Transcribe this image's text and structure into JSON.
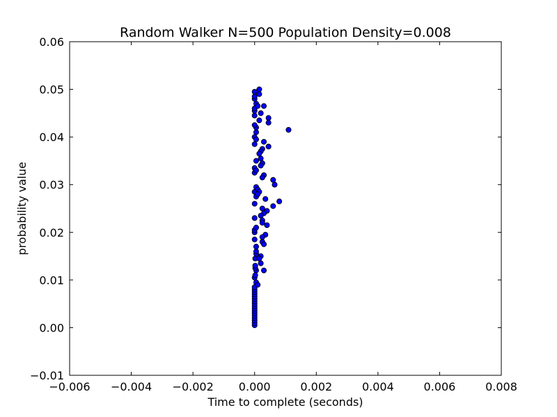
{
  "chart_data": {
    "type": "scatter",
    "title": "Random Walker N=500 Population Density=0.008",
    "xlabel": "Time to complete (seconds)",
    "ylabel": "probability value",
    "xlim": [
      -0.006,
      0.008
    ],
    "ylim": [
      -0.01,
      0.06
    ],
    "xticks": [
      -0.006,
      -0.004,
      -0.002,
      0.0,
      0.002,
      0.004,
      0.006,
      0.008
    ],
    "xtick_labels": [
      "−0.006",
      "−0.004",
      "−0.002",
      "0.000",
      "0.002",
      "0.004",
      "0.006",
      "0.008"
    ],
    "yticks": [
      -0.01,
      0.0,
      0.01,
      0.02,
      0.03,
      0.04,
      0.05,
      0.06
    ],
    "ytick_labels": [
      "−0.01",
      "0.00",
      "0.01",
      "0.02",
      "0.03",
      "0.04",
      "0.05",
      "0.06"
    ],
    "grid": false,
    "legend": "none",
    "marker_color": "#0000ff",
    "marker_edge_color": "#000000",
    "points": [
      {
        "x": 0.0,
        "y": 0.0005
      },
      {
        "x": 0.0,
        "y": 0.001
      },
      {
        "x": 0.0,
        "y": 0.0015
      },
      {
        "x": 0.0,
        "y": 0.002
      },
      {
        "x": 0.0,
        "y": 0.0025
      },
      {
        "x": 0.0,
        "y": 0.003
      },
      {
        "x": 0.0,
        "y": 0.0035
      },
      {
        "x": 0.0,
        "y": 0.004
      },
      {
        "x": 0.0,
        "y": 0.0045
      },
      {
        "x": 0.0,
        "y": 0.005
      },
      {
        "x": 0.0,
        "y": 0.0055
      },
      {
        "x": 0.0,
        "y": 0.006
      },
      {
        "x": 0.0,
        "y": 0.0065
      },
      {
        "x": 0.0,
        "y": 0.007
      },
      {
        "x": 0.0,
        "y": 0.0075
      },
      {
        "x": 0.0,
        "y": 0.008
      },
      {
        "x": 0.0,
        "y": 0.0085
      },
      {
        "x": 5e-05,
        "y": 0.0095
      },
      {
        "x": 0.0,
        "y": 0.0105
      },
      {
        "x": 2e-05,
        "y": 0.011
      },
      {
        "x": 5e-05,
        "y": 0.012
      },
      {
        "x": 2e-05,
        "y": 0.0125
      },
      {
        "x": 2e-05,
        "y": 0.013
      },
      {
        "x": 2e-05,
        "y": 0.0145
      },
      {
        "x": 5e-05,
        "y": 0.0155
      },
      {
        "x": 5e-05,
        "y": 0.016
      },
      {
        "x": 5e-05,
        "y": 0.017
      },
      {
        "x": 0.0,
        "y": 0.0185
      },
      {
        "x": 0.0,
        "y": 0.02
      },
      {
        "x": 0.0,
        "y": 0.0205
      },
      {
        "x": 5e-05,
        "y": 0.021
      },
      {
        "x": 0.0,
        "y": 0.023
      },
      {
        "x": 0.0,
        "y": 0.026
      },
      {
        "x": 0.0,
        "y": 0.0285
      },
      {
        "x": 5e-05,
        "y": 0.0275
      },
      {
        "x": 5e-05,
        "y": 0.0295
      },
      {
        "x": 0.0,
        "y": 0.0325
      },
      {
        "x": 0.0,
        "y": 0.0335
      },
      {
        "x": 5e-05,
        "y": 0.033
      },
      {
        "x": 0.0,
        "y": 0.0385
      },
      {
        "x": 0.0,
        "y": 0.04
      },
      {
        "x": 5e-05,
        "y": 0.0395
      },
      {
        "x": 5e-05,
        "y": 0.041
      },
      {
        "x": 5e-05,
        "y": 0.042
      },
      {
        "x": 0.0,
        "y": 0.0425
      },
      {
        "x": 0.0,
        "y": 0.0445
      },
      {
        "x": 0.0,
        "y": 0.0455
      },
      {
        "x": 0.0,
        "y": 0.046
      },
      {
        "x": 0.0,
        "y": 0.048
      },
      {
        "x": 0.0,
        "y": 0.0485
      },
      {
        "x": 0.0,
        "y": 0.0495
      },
      {
        "x": 5e-05,
        "y": 0.047
      },
      {
        "x": 0.00015,
        "y": 0.05
      },
      {
        "x": 0.00015,
        "y": 0.049
      },
      {
        "x": 0.0001,
        "y": 0.0465
      },
      {
        "x": 0.0003,
        "y": 0.0465
      },
      {
        "x": 0.0002,
        "y": 0.045
      },
      {
        "x": 0.00015,
        "y": 0.0435
      },
      {
        "x": 0.00045,
        "y": 0.044
      },
      {
        "x": 0.00045,
        "y": 0.043
      },
      {
        "x": 0.0011,
        "y": 0.0415
      },
      {
        "x": 0.0003,
        "y": 0.039
      },
      {
        "x": 0.00045,
        "y": 0.038
      },
      {
        "x": 0.00025,
        "y": 0.0375
      },
      {
        "x": 0.0002,
        "y": 0.037
      },
      {
        "x": 0.00015,
        "y": 0.0365
      },
      {
        "x": 0.0002,
        "y": 0.0355
      },
      {
        "x": 5e-05,
        "y": 0.035
      },
      {
        "x": 0.00025,
        "y": 0.0345
      },
      {
        "x": 0.0002,
        "y": 0.034
      },
      {
        "x": 0.0003,
        "y": 0.032
      },
      {
        "x": 0.00025,
        "y": 0.0315
      },
      {
        "x": 0.0006,
        "y": 0.031
      },
      {
        "x": 0.00065,
        "y": 0.03
      },
      {
        "x": 0.0001,
        "y": 0.029
      },
      {
        "x": 0.00015,
        "y": 0.0285
      },
      {
        "x": 0.0001,
        "y": 0.028
      },
      {
        "x": 0.0008,
        "y": 0.0265
      },
      {
        "x": 0.00035,
        "y": 0.027
      },
      {
        "x": 0.0006,
        "y": 0.0255
      },
      {
        "x": 0.00025,
        "y": 0.025
      },
      {
        "x": 0.0004,
        "y": 0.0245
      },
      {
        "x": 0.0003,
        "y": 0.024
      },
      {
        "x": 0.0002,
        "y": 0.0235
      },
      {
        "x": 0.00025,
        "y": 0.0225
      },
      {
        "x": 0.00025,
        "y": 0.022
      },
      {
        "x": 0.0004,
        "y": 0.0215
      },
      {
        "x": 0.00035,
        "y": 0.0195
      },
      {
        "x": 0.00025,
        "y": 0.019
      },
      {
        "x": 0.00025,
        "y": 0.018
      },
      {
        "x": 0.0003,
        "y": 0.0175
      },
      {
        "x": 0.0002,
        "y": 0.015
      },
      {
        "x": 0.00015,
        "y": 0.0145
      },
      {
        "x": 0.0002,
        "y": 0.0135
      },
      {
        "x": 0.0003,
        "y": 0.012
      },
      {
        "x": 0.0001,
        "y": 0.009
      }
    ]
  }
}
